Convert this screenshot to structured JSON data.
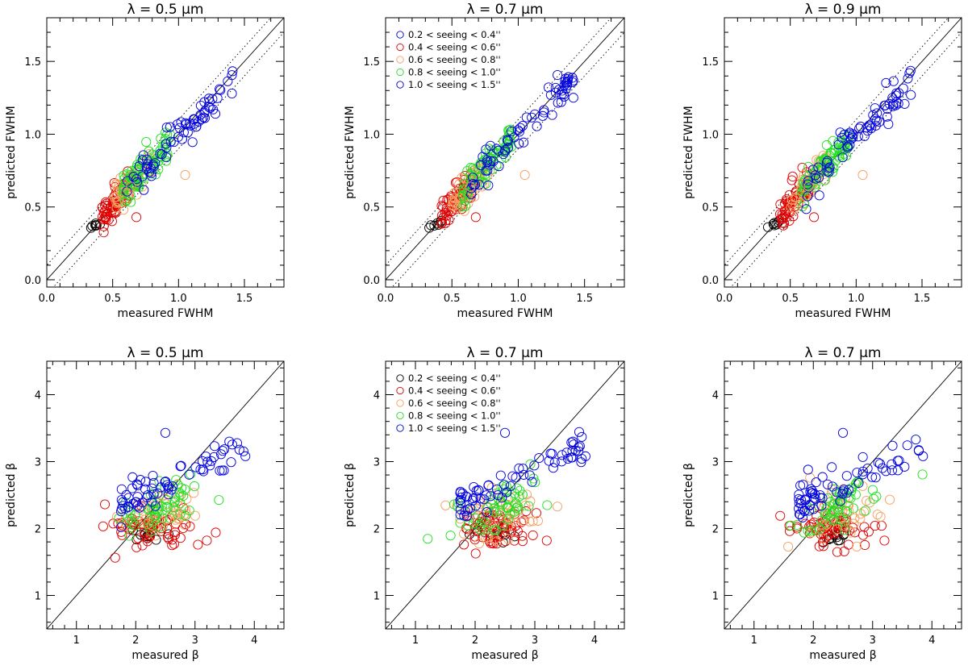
{
  "colors": {
    "0": "#000000",
    "1": "#e00000",
    "2": "#f5a060",
    "3": "#20e020",
    "4": "#0000e0"
  },
  "legend_entries": [
    "0.2 < seeing < 0.4''",
    "0.4 < seeing < 0.6''",
    "0.6 < seeing < 0.8''",
    "0.8 < seeing < 1.0''",
    "1.0 < seeing < 1.5''"
  ],
  "chart_data": [
    {
      "id": "fwhm-050",
      "type": "scatter",
      "kind": "fwhm",
      "title": "λ = 0.5 μm",
      "xlabel": "measured FWHM",
      "ylabel": "predicted FWHM",
      "xlim": [
        0,
        1.8
      ],
      "ylim": [
        -0.05,
        1.8
      ],
      "xticks": [
        "0.0",
        "0.5",
        "1.0",
        "1.5"
      ],
      "yticks": [
        "0.0",
        "0.5",
        "1.0",
        "1.5"
      ],
      "reference_lines": [
        "y = x",
        "y = x + 0.1",
        "y = x - 0.1"
      ],
      "legend": false,
      "seed": 11
    },
    {
      "id": "fwhm-070",
      "type": "scatter",
      "kind": "fwhm",
      "title": "λ = 0.7 μm",
      "xlabel": "measured FWHM",
      "ylabel": "predicted FWHM",
      "xlim": [
        0,
        1.8
      ],
      "ylim": [
        -0.05,
        1.8
      ],
      "xticks": [
        "0.0",
        "0.5",
        "1.0",
        "1.5"
      ],
      "yticks": [
        "0.0",
        "0.5",
        "1.0",
        "1.5"
      ],
      "reference_lines": [
        "y = x",
        "y = x + 0.1",
        "y = x - 0.1"
      ],
      "legend": true,
      "legend_first_color": 4,
      "seed": 23
    },
    {
      "id": "fwhm-090",
      "type": "scatter",
      "kind": "fwhm",
      "title": "λ = 0.9 μm",
      "xlabel": "measured FWHM",
      "ylabel": "predicted FWHM",
      "xlim": [
        0,
        1.8
      ],
      "ylim": [
        -0.05,
        1.8
      ],
      "xticks": [
        "0.0",
        "0.5",
        "1.0",
        "1.5"
      ],
      "yticks": [
        "0.0",
        "0.5",
        "1.0",
        "1.5"
      ],
      "reference_lines": [
        "y = x",
        "y = x + 0.1",
        "y = x - 0.1"
      ],
      "legend": false,
      "seed": 37
    },
    {
      "id": "beta-050",
      "type": "scatter",
      "kind": "beta",
      "title": "λ = 0.5 μm",
      "xlabel": "measured β",
      "ylabel": "predicted β",
      "xlim": [
        0.5,
        4.5
      ],
      "ylim": [
        0.5,
        4.5
      ],
      "xticks": [
        "1",
        "2",
        "3",
        "4"
      ],
      "yticks": [
        "1",
        "2",
        "3",
        "4"
      ],
      "reference_lines": [
        "y = x"
      ],
      "legend": false,
      "seed": 41
    },
    {
      "id": "beta-070",
      "type": "scatter",
      "kind": "beta",
      "title": "λ = 0.7 μm",
      "xlabel": "measured β",
      "ylabel": "predicted β",
      "xlim": [
        0.5,
        4.5
      ],
      "ylim": [
        0.5,
        4.5
      ],
      "xticks": [
        "1",
        "2",
        "3",
        "4"
      ],
      "yticks": [
        "1",
        "2",
        "3",
        "4"
      ],
      "reference_lines": [
        "y = x"
      ],
      "legend": true,
      "legend_first_color": 0,
      "seed": 53
    },
    {
      "id": "beta-070b",
      "type": "scatter",
      "kind": "beta",
      "title": "λ = 0.7 μm",
      "xlabel": "measured β",
      "ylabel": "predicted β",
      "xlim": [
        0.5,
        4.5
      ],
      "ylim": [
        0.5,
        4.5
      ],
      "xticks": [
        "1",
        "2",
        "3",
        "4"
      ],
      "yticks": [
        "1",
        "2",
        "3",
        "4"
      ],
      "reference_lines": [
        "y = x"
      ],
      "legend": false,
      "seed": 67
    }
  ]
}
